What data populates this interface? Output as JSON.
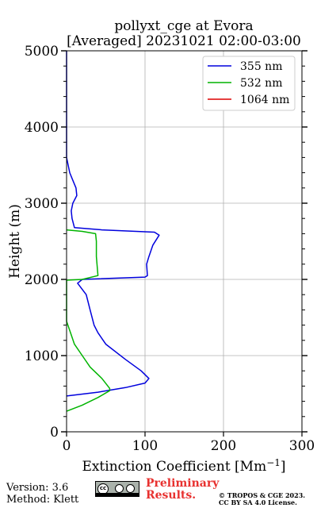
{
  "chart_data": {
    "type": "line",
    "title_line1": "pollyxt_cge at Evora",
    "title_line2": "[Averaged] 20231021 02:00-03:00",
    "xlabel": "Extinction Coefficient [Mm",
    "xlabel_sup": "−1",
    "xlabel_end": "]",
    "ylabel": "Height (m)",
    "xlim": [
      0,
      300
    ],
    "ylim": [
      0,
      5000
    ],
    "x_ticks": [
      0,
      100,
      200,
      300
    ],
    "y_ticks": [
      0,
      1000,
      2000,
      3000,
      4000,
      5000
    ],
    "x_tick_labels": [
      "0",
      "100",
      "200",
      "300"
    ],
    "y_tick_labels": [
      "0",
      "1000",
      "2000",
      "3000",
      "4000",
      "5000"
    ],
    "grid": true,
    "legend_position": "top-right",
    "series": [
      {
        "name": "355 nm",
        "color": "#0000dd",
        "points": [
          [
            0,
            470
          ],
          [
            40,
            520
          ],
          [
            75,
            580
          ],
          [
            100,
            640
          ],
          [
            105,
            700
          ],
          [
            95,
            800
          ],
          [
            75,
            950
          ],
          [
            50,
            1150
          ],
          [
            40,
            1300
          ],
          [
            35,
            1400
          ],
          [
            30,
            1600
          ],
          [
            25,
            1800
          ],
          [
            14,
            1950
          ],
          [
            20,
            2000
          ],
          [
            100,
            2030
          ],
          [
            103,
            2050
          ],
          [
            102,
            2200
          ],
          [
            105,
            2300
          ],
          [
            110,
            2450
          ],
          [
            118,
            2580
          ],
          [
            112,
            2620
          ],
          [
            45,
            2650
          ],
          [
            10,
            2680
          ],
          [
            7,
            2800
          ],
          [
            6,
            2900
          ],
          [
            8,
            3000
          ],
          [
            13,
            3100
          ],
          [
            12,
            3200
          ],
          [
            8,
            3300
          ],
          [
            4,
            3400
          ],
          [
            2,
            3500
          ],
          [
            0,
            3600
          ],
          [
            0,
            3700
          ],
          [
            0,
            4600
          ],
          [
            0,
            4700
          ],
          [
            0,
            5000
          ]
        ]
      },
      {
        "name": "532 nm",
        "color": "#00b400",
        "points": [
          [
            0,
            270
          ],
          [
            20,
            350
          ],
          [
            40,
            450
          ],
          [
            55,
            540
          ],
          [
            55,
            570
          ],
          [
            45,
            700
          ],
          [
            30,
            850
          ],
          [
            20,
            1000
          ],
          [
            10,
            1150
          ],
          [
            5,
            1300
          ],
          [
            0,
            1450
          ],
          [
            0,
            1990
          ],
          [
            20,
            2000
          ],
          [
            40,
            2050
          ],
          [
            38,
            2300
          ],
          [
            38,
            2500
          ],
          [
            37,
            2600
          ],
          [
            20,
            2630
          ],
          [
            0,
            2650
          ]
        ]
      },
      {
        "name": "1064 nm",
        "color": "#dd0000",
        "points": []
      }
    ]
  },
  "footer": {
    "version": "Version: 3.6",
    "method": "Method: Klett",
    "license_badge": "cc-by-sa-badge",
    "preliminary_line1": "Preliminary",
    "preliminary_line2": "Results.",
    "copyright_line1": "© TROPOS & CGE 2023.",
    "copyright_line2": "CC BY SA 4.0 License.",
    "preliminary_color": "#e8312f"
  }
}
